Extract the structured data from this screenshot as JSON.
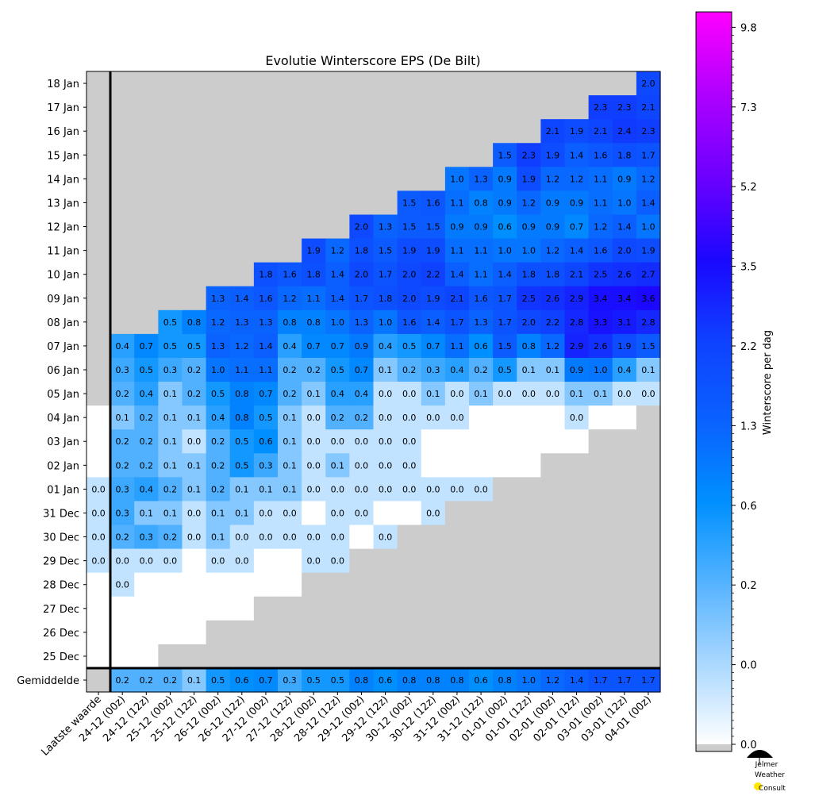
{
  "chart_data": {
    "type": "heatmap",
    "title": "Evolutie Winterscore EPS (De Bilt)",
    "colorbar_label": "Winterscore per dag",
    "colorbar_ticks": [
      "0.0",
      "0.0",
      "0.2",
      "0.6",
      "1.3",
      "2.2",
      "3.5",
      "5.2",
      "7.3",
      "9.8"
    ],
    "colorbar_tick_values": [
      0.0,
      0.04,
      0.2,
      0.6,
      1.3,
      2.2,
      3.5,
      5.2,
      7.3,
      9.8
    ],
    "colors": {
      "missing": "#cccccc",
      "low": "#ffffff",
      "mid": "#0090ff",
      "high": "#1a08ff",
      "max": "#ff00ff"
    },
    "columns": [
      "Laatste waarde",
      "24-12 (00z)",
      "24-12 (12z)",
      "25-12 (00z)",
      "25-12 (12z)",
      "26-12 (00z)",
      "26-12 (12z)",
      "27-12 (00z)",
      "27-12 (12z)",
      "28-12 (00z)",
      "28-12 (12z)",
      "29-12 (00z)",
      "29-12 (12z)",
      "30-12 (00z)",
      "30-12 (12z)",
      "31-12 (00z)",
      "31-12 (12z)",
      "01-01 (00z)",
      "01-01 (12z)",
      "02-01 (00z)",
      "02-01 (12z)",
      "03-01 (00z)",
      "03-01 (12z)",
      "04-01 (00z)"
    ],
    "rows": [
      "18 Jan",
      "17 Jan",
      "16 Jan",
      "15 Jan",
      "14 Jan",
      "13 Jan",
      "12 Jan",
      "11 Jan",
      "10 Jan",
      "09 Jan",
      "08 Jan",
      "07 Jan",
      "06 Jan",
      "05 Jan",
      "04 Jan",
      "03 Jan",
      "02 Jan",
      "01 Jan",
      "31 Dec",
      "30 Dec",
      "29 Dec",
      "28 Dec",
      "27 Dec",
      "26 Dec",
      "25 Dec",
      "Gemiddelde"
    ],
    "legend_note": "null = no data (grey), empty string = zero without label",
    "values": [
      [
        null,
        null,
        null,
        null,
        null,
        null,
        null,
        null,
        null,
        null,
        null,
        null,
        null,
        null,
        null,
        null,
        null,
        null,
        null,
        null,
        null,
        null,
        null,
        2.0
      ],
      [
        null,
        null,
        null,
        null,
        null,
        null,
        null,
        null,
        null,
        null,
        null,
        null,
        null,
        null,
        null,
        null,
        null,
        null,
        null,
        null,
        null,
        2.3,
        2.3,
        2.1
      ],
      [
        null,
        null,
        null,
        null,
        null,
        null,
        null,
        null,
        null,
        null,
        null,
        null,
        null,
        null,
        null,
        null,
        null,
        null,
        null,
        2.1,
        1.9,
        2.1,
        2.4,
        2.3
      ],
      [
        null,
        null,
        null,
        null,
        null,
        null,
        null,
        null,
        null,
        null,
        null,
        null,
        null,
        null,
        null,
        null,
        null,
        1.5,
        2.3,
        1.9,
        1.4,
        1.6,
        1.8,
        1.7
      ],
      [
        null,
        null,
        null,
        null,
        null,
        null,
        null,
        null,
        null,
        null,
        null,
        null,
        null,
        null,
        null,
        1.0,
        1.3,
        0.9,
        1.9,
        1.2,
        1.2,
        1.1,
        0.9,
        1.2
      ],
      [
        null,
        null,
        null,
        null,
        null,
        null,
        null,
        null,
        null,
        null,
        null,
        null,
        null,
        1.5,
        1.6,
        1.1,
        0.8,
        0.9,
        1.2,
        0.9,
        0.9,
        1.1,
        1.0,
        1.4
      ],
      [
        null,
        null,
        null,
        null,
        null,
        null,
        null,
        null,
        null,
        null,
        null,
        2.0,
        1.3,
        1.5,
        1.5,
        0.9,
        0.9,
        0.6,
        0.9,
        0.9,
        0.7,
        1.2,
        1.4,
        1.0
      ],
      [
        null,
        null,
        null,
        null,
        null,
        null,
        null,
        null,
        null,
        1.9,
        1.2,
        1.8,
        1.5,
        1.9,
        1.9,
        1.1,
        1.1,
        1.0,
        1.0,
        1.2,
        1.4,
        1.6,
        2.0,
        1.9
      ],
      [
        null,
        null,
        null,
        null,
        null,
        null,
        null,
        1.8,
        1.6,
        1.8,
        1.4,
        2.0,
        1.7,
        2.0,
        2.2,
        1.4,
        1.1,
        1.4,
        1.8,
        1.8,
        2.1,
        2.5,
        2.6,
        2.7
      ],
      [
        null,
        null,
        null,
        null,
        null,
        1.3,
        1.4,
        1.6,
        1.2,
        1.1,
        1.4,
        1.7,
        1.8,
        2.0,
        1.9,
        2.1,
        1.6,
        1.7,
        2.5,
        2.6,
        2.9,
        3.4,
        3.4,
        3.6
      ],
      [
        null,
        null,
        null,
        0.5,
        0.8,
        1.2,
        1.3,
        1.3,
        0.8,
        0.8,
        1.0,
        1.3,
        1.0,
        1.6,
        1.4,
        1.7,
        1.3,
        1.7,
        2.0,
        2.2,
        2.8,
        3.3,
        3.1,
        2.8
      ],
      [
        null,
        0.4,
        0.7,
        0.5,
        0.5,
        1.3,
        1.2,
        1.4,
        0.4,
        0.7,
        0.7,
        0.9,
        0.4,
        0.5,
        0.7,
        1.1,
        0.6,
        1.5,
        0.8,
        1.2,
        2.9,
        2.6,
        1.9,
        1.5
      ],
      [
        null,
        0.3,
        0.5,
        0.3,
        0.2,
        1.0,
        1.1,
        1.1,
        0.2,
        0.2,
        0.5,
        0.7,
        0.1,
        0.2,
        0.3,
        0.4,
        0.2,
        0.5,
        0.1,
        0.1,
        0.9,
        1.0,
        0.4,
        0.1
      ],
      [
        null,
        0.2,
        0.4,
        0.1,
        0.2,
        0.5,
        0.8,
        0.7,
        0.2,
        0.1,
        0.4,
        0.4,
        0.0,
        0.0,
        0.1,
        0.0,
        0.1,
        0.0,
        0.0,
        0.0,
        0.1,
        0.1,
        0.0,
        0.0
      ],
      [
        "",
        0.1,
        0.2,
        0.1,
        0.1,
        0.4,
        0.8,
        0.5,
        0.1,
        0.0,
        0.2,
        0.2,
        0.0,
        0.0,
        0.0,
        0.0,
        "",
        "",
        "",
        "",
        0.0,
        "",
        "",
        null
      ],
      [
        "",
        0.2,
        0.2,
        0.1,
        0.0,
        0.2,
        0.5,
        0.6,
        0.1,
        0.0,
        0.0,
        0.0,
        0.0,
        0.0,
        "",
        "",
        "",
        "",
        "",
        "",
        "",
        null,
        null,
        null
      ],
      [
        "",
        0.2,
        0.2,
        0.1,
        0.1,
        0.2,
        0.5,
        0.3,
        0.1,
        0.0,
        0.1,
        0.0,
        0.0,
        0.0,
        "",
        "",
        "",
        "",
        "",
        null,
        null,
        null,
        null,
        null
      ],
      [
        0.0,
        0.3,
        0.4,
        0.2,
        0.1,
        0.2,
        0.1,
        0.1,
        0.1,
        0.0,
        0.0,
        0.0,
        0.0,
        0.0,
        0.0,
        0.0,
        0.0,
        null,
        null,
        null,
        null,
        null,
        null,
        null
      ],
      [
        0.0,
        0.3,
        0.1,
        0.1,
        0.0,
        0.1,
        0.1,
        0.0,
        0.0,
        "",
        0.0,
        0.0,
        "",
        "",
        0.0,
        null,
        null,
        null,
        null,
        null,
        null,
        null,
        null,
        null
      ],
      [
        0.0,
        0.2,
        0.3,
        0.2,
        0.0,
        0.1,
        0.0,
        0.0,
        0.0,
        0.0,
        0.0,
        "",
        0.0,
        null,
        null,
        null,
        null,
        null,
        null,
        null,
        null,
        null,
        null,
        null
      ],
      [
        0.0,
        0.0,
        0.0,
        0.0,
        "",
        0.0,
        0.0,
        "",
        "",
        0.0,
        0.0,
        null,
        null,
        null,
        null,
        null,
        null,
        null,
        null,
        null,
        null,
        null,
        null,
        null
      ],
      [
        "",
        0.0,
        "",
        "",
        "",
        "",
        "",
        "",
        "",
        null,
        null,
        null,
        null,
        null,
        null,
        null,
        null,
        null,
        null,
        null,
        null,
        null,
        null,
        null
      ],
      [
        "",
        "",
        "",
        "",
        "",
        "",
        "",
        null,
        null,
        null,
        null,
        null,
        null,
        null,
        null,
        null,
        null,
        null,
        null,
        null,
        null,
        null,
        null,
        null
      ],
      [
        "",
        "",
        "",
        "",
        "",
        null,
        null,
        null,
        null,
        null,
        null,
        null,
        null,
        null,
        null,
        null,
        null,
        null,
        null,
        null,
        null,
        null,
        null,
        null
      ],
      [
        "",
        "",
        "",
        null,
        null,
        null,
        null,
        null,
        null,
        null,
        null,
        null,
        null,
        null,
        null,
        null,
        null,
        null,
        null,
        null,
        null,
        null,
        null,
        null
      ],
      [
        null,
        0.2,
        0.2,
        0.2,
        0.1,
        0.5,
        0.6,
        0.7,
        0.3,
        0.5,
        0.5,
        0.8,
        0.6,
        0.8,
        0.8,
        0.8,
        0.6,
        0.8,
        1.0,
        1.2,
        1.4,
        1.7,
        1.7,
        1.7
      ]
    ]
  },
  "logo": {
    "line1": "Jelmer",
    "line2": "Weather",
    "line3": "Consult"
  }
}
